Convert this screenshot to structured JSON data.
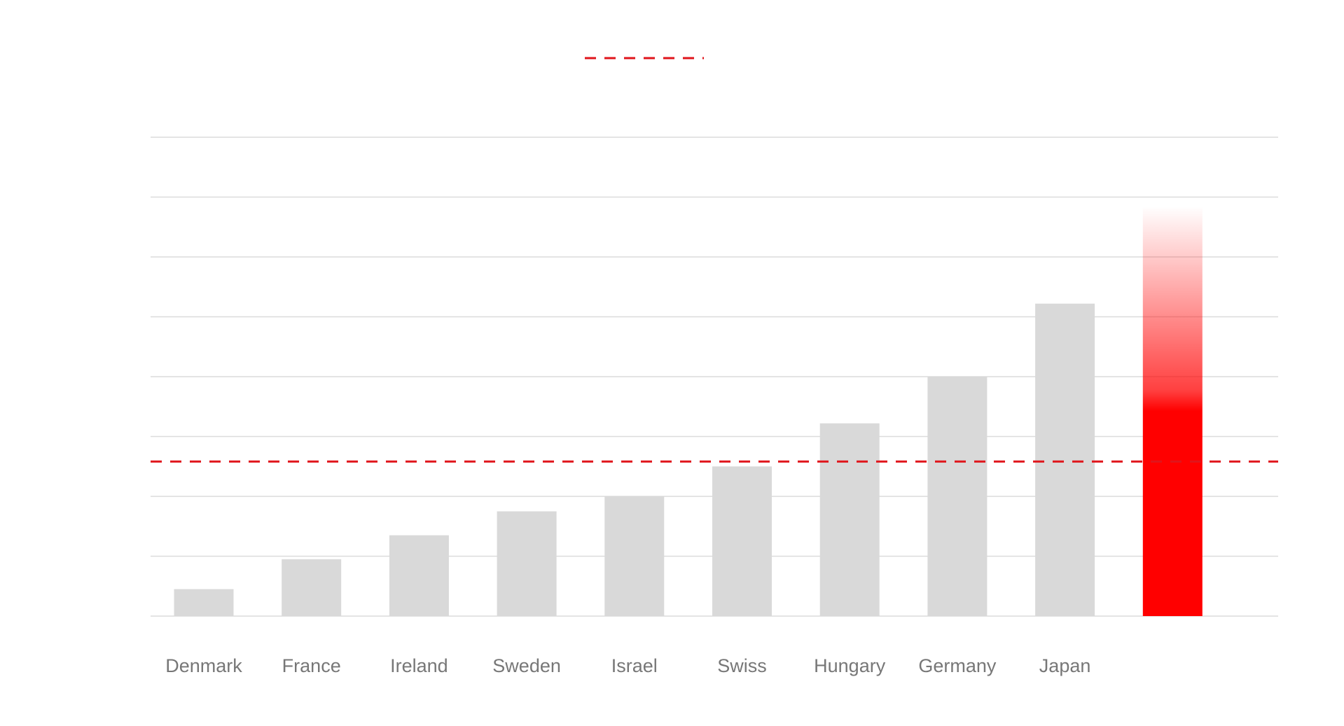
{
  "chart_data": {
    "type": "bar",
    "categories": [
      "Denmark",
      "France",
      "Ireland",
      "Sweden",
      "Israel",
      "Swiss",
      "Hungary",
      "Germany",
      "Japan",
      ""
    ],
    "values": [
      0.45,
      0.95,
      1.35,
      1.75,
      2.0,
      2.5,
      3.22,
      4.0,
      5.22,
      6.85
    ],
    "highlight_index": 9,
    "reference_line": {
      "value": 2.5,
      "style": "dashed"
    },
    "ylim": [
      0,
      8
    ],
    "y_gridlines": [
      0,
      1,
      2,
      3,
      4,
      5,
      6,
      7,
      8
    ],
    "grid": true,
    "legend": "top-center",
    "title": "",
    "xlabel": "",
    "ylabel": "",
    "colors": {
      "bar": "#d9d9d9",
      "highlight": "#ff0000",
      "reference_line": "#e0151b",
      "grid": "#dcdcdc",
      "label": "#777777"
    }
  }
}
